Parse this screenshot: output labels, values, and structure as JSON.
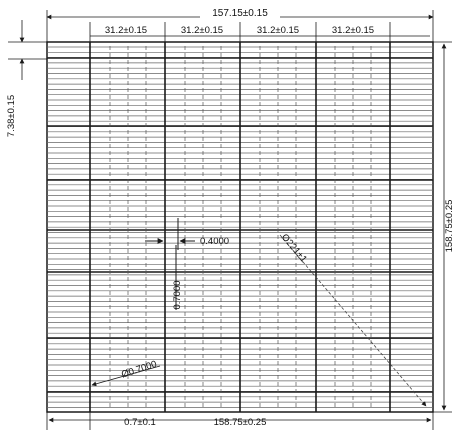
{
  "dimensions": {
    "overall_width": "157.15±0.15",
    "cell_width_1": "31.2±0.15",
    "cell_width_2": "31.2±0.15",
    "cell_width_3": "31.2±0.15",
    "cell_width_4": "31.2±0.15",
    "top_offset": "7.38±0.15",
    "overall_height": "158.75±0.25",
    "bottom_width": "158.75±0.25",
    "bottom_offset": "0.7±0.1",
    "finger_spacing": "0.4000",
    "finger_length": "0.7000",
    "diagonal": "Ø221±1",
    "corner_diameter": "Ø0.7000"
  },
  "colors": {
    "line": "#1a1a1a",
    "grid": "#777777",
    "dash_marker": "#a8a25a"
  }
}
